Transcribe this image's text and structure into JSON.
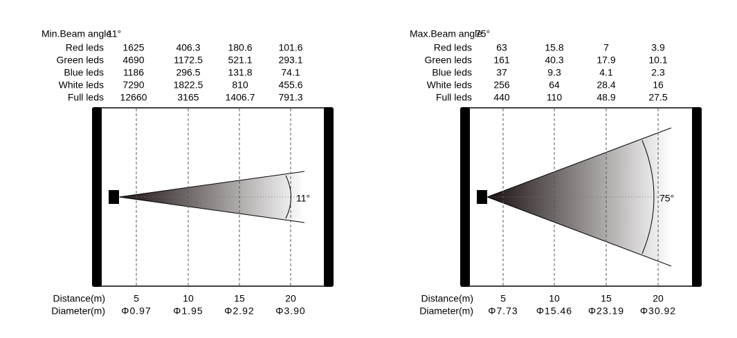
{
  "panels": [
    {
      "title": "Min.Beam angle",
      "angle": "11°",
      "rows": [
        {
          "label": "Red leds",
          "values": [
            "1625",
            "406.3",
            "180.6",
            "101.6"
          ]
        },
        {
          "label": "Green leds",
          "values": [
            "4690",
            "1172.5",
            "521.1",
            "293.1"
          ]
        },
        {
          "label": "Blue leds",
          "values": [
            "1186",
            "296.5",
            "131.8",
            "74.1"
          ]
        },
        {
          "label": "White leds",
          "values": [
            "7290",
            "1822.5",
            "810",
            "455.6"
          ]
        },
        {
          "label": "Full leds",
          "values": [
            "12660",
            "3165",
            "1406.7",
            "791.3"
          ]
        }
      ],
      "beam_label": "11°",
      "distance_label": "Distance(m)",
      "distances": [
        "5",
        "10",
        "15",
        "20"
      ],
      "diameter_label": "Diameter(m)",
      "diameters": [
        "Φ0.97",
        "Φ1.95",
        "Φ2.92",
        "Φ3.90"
      ]
    },
    {
      "title": "Max.Beam angle",
      "angle": "75°",
      "rows": [
        {
          "label": "Red leds",
          "values": [
            "63",
            "15.8",
            "7",
            "3.9"
          ]
        },
        {
          "label": "Green leds",
          "values": [
            "161",
            "40.3",
            "17.9",
            "10.1"
          ]
        },
        {
          "label": "Blue leds",
          "values": [
            "37",
            "9.3",
            "4.1",
            "2.3"
          ]
        },
        {
          "label": "White leds",
          "values": [
            "256",
            "64",
            "28.4",
            "16"
          ]
        },
        {
          "label": "Full leds",
          "values": [
            "440",
            "110",
            "48.9",
            "27.5"
          ]
        }
      ],
      "beam_label": "75°",
      "distance_label": "Distance(m)",
      "distances": [
        "5",
        "10",
        "15",
        "20"
      ],
      "diameter_label": "Diameter(m)",
      "diameters": [
        "Φ7.73",
        "Φ15.46",
        "Φ23.19",
        "Φ30.92"
      ]
    }
  ]
}
